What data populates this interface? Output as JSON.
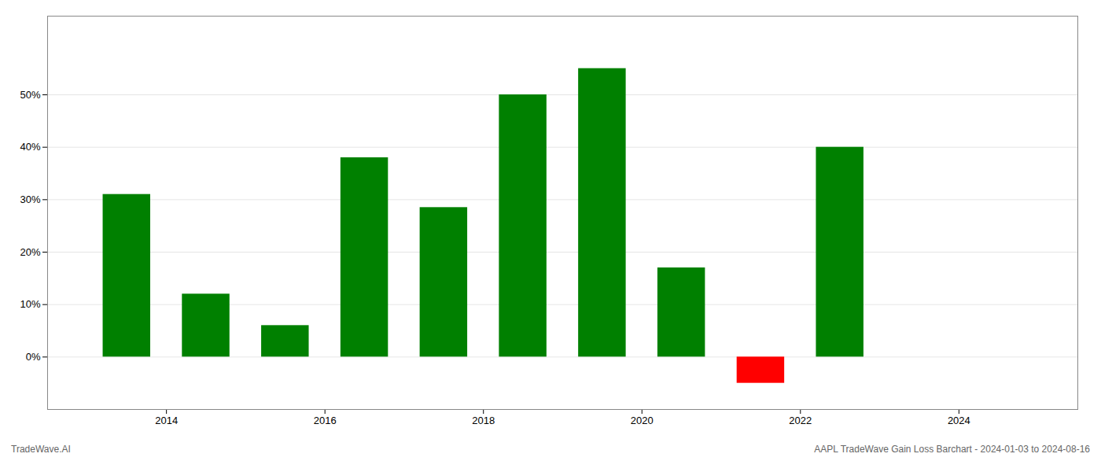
{
  "chart_data": {
    "type": "bar",
    "x": [
      2013.5,
      2014.5,
      2015.5,
      2016.5,
      2017.5,
      2018.5,
      2019.5,
      2020.5,
      2021.5,
      2022.5
    ],
    "values": [
      0.31,
      0.12,
      0.06,
      0.38,
      0.285,
      0.5,
      0.55,
      0.17,
      -0.05,
      0.4
    ],
    "colors": [
      "#008000",
      "#008000",
      "#008000",
      "#008000",
      "#008000",
      "#008000",
      "#008000",
      "#008000",
      "#ff0000",
      "#008000"
    ],
    "xlim": [
      2012.5,
      2025.5
    ],
    "xticks": [
      2014,
      2016,
      2018,
      2020,
      2022,
      2024
    ],
    "ylim": [
      -0.1,
      0.65
    ],
    "yticks": [
      {
        "value": 0.0,
        "label": "0%"
      },
      {
        "value": 0.1,
        "label": "10%"
      },
      {
        "value": 0.2,
        "label": "20%"
      },
      {
        "value": 0.3,
        "label": "30%"
      },
      {
        "value": 0.4,
        "label": "40%"
      },
      {
        "value": 0.5,
        "label": "50%"
      }
    ],
    "grid": true,
    "annotations": [
      "TradeWave.AI",
      "AAPL TradeWave Gain Loss Barchart - 2024-01-03 to 2024-08-16"
    ]
  }
}
